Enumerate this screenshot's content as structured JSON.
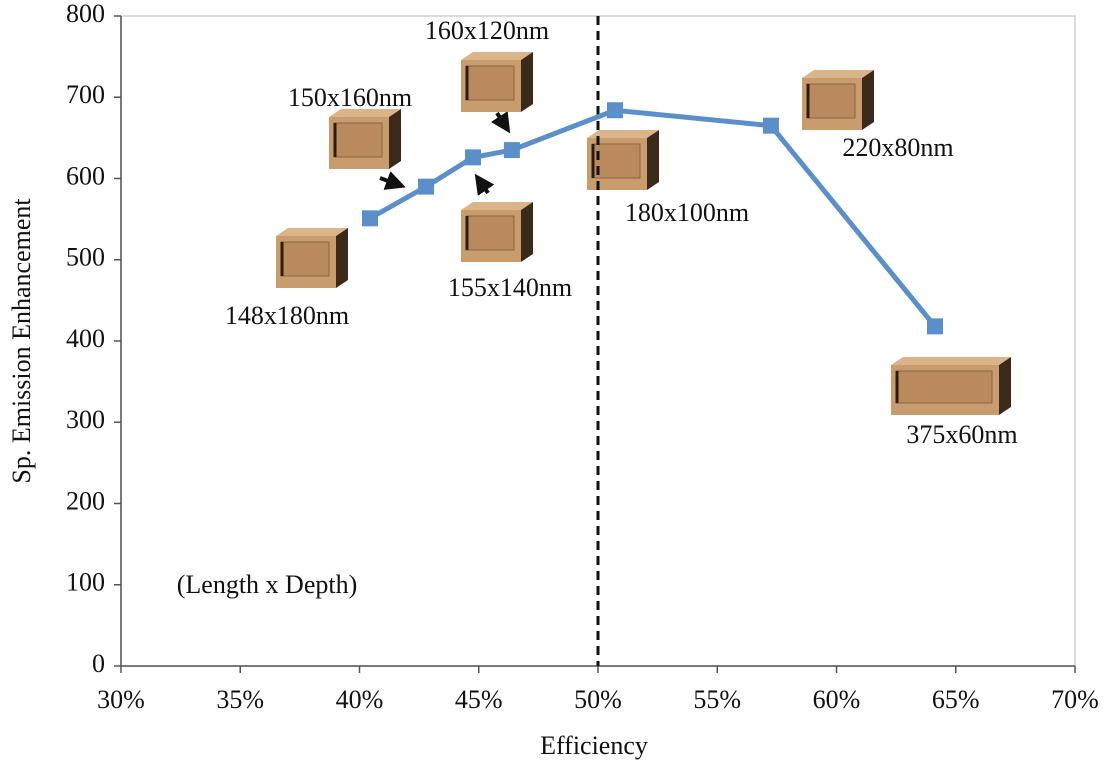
{
  "chart_data": {
    "type": "line",
    "xlabel": "Efficiency",
    "ylabel": "Sp. Emission Enhancement",
    "x": [
      40.44,
      42.79,
      44.76,
      46.39,
      50.71,
      57.25,
      64.13
    ],
    "values": [
      551,
      590,
      626,
      635,
      684,
      665,
      418
    ],
    "color": "#5b8fc9",
    "xlim": [
      30,
      70
    ],
    "xticks": [
      {
        "value": 30,
        "label": "30%"
      },
      {
        "value": 35,
        "label": "35%"
      },
      {
        "value": 40,
        "label": "40%"
      },
      {
        "value": 45,
        "label": "45%"
      },
      {
        "value": 50,
        "label": "50%"
      },
      {
        "value": 55,
        "label": "55%"
      },
      {
        "value": 60,
        "label": "60%"
      },
      {
        "value": 65,
        "label": "65%"
      },
      {
        "value": 70,
        "label": "70%"
      }
    ],
    "ylim": [
      0,
      800
    ],
    "yticks": [
      0,
      100,
      200,
      300,
      400,
      500,
      600,
      700,
      800
    ],
    "vline_x": 50,
    "annotations": [
      "148x180nm",
      "150x160nm",
      "160x120nm",
      "155x140nm",
      "180x100nm",
      "220x80nm",
      "375x60nm",
      "(Length x Depth)"
    ]
  }
}
